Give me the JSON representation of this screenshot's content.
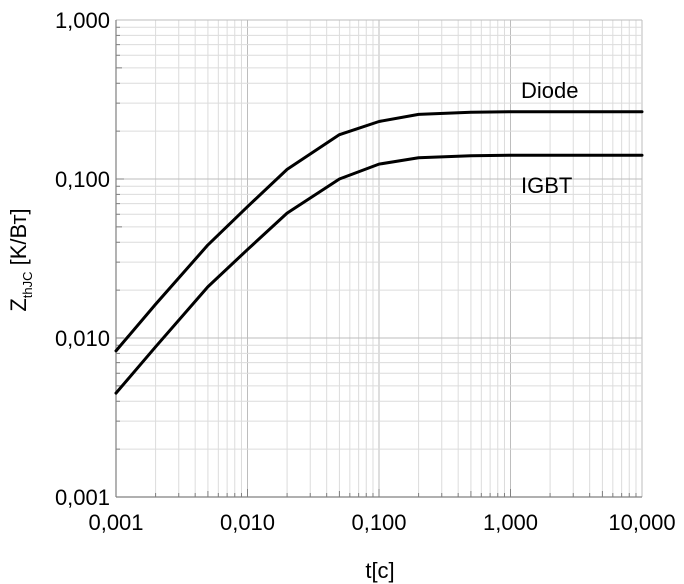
{
  "chart_data": {
    "type": "line",
    "xscale": "log",
    "yscale": "log",
    "xlim": [
      0.001,
      10
    ],
    "ylim": [
      0.001,
      1
    ],
    "grid": true,
    "x_ticks": [
      0.001,
      0.01,
      0.1,
      1,
      10
    ],
    "x_tick_labels": [
      "0,001",
      "0,010",
      "0,100",
      "1,000",
      "10,000"
    ],
    "y_ticks": [
      0.001,
      0.01,
      0.1,
      1
    ],
    "y_tick_labels": [
      "0,001",
      "0,010",
      "0,100",
      "1,000"
    ],
    "xlabel": "t[c]",
    "ylabel_main": "Z",
    "ylabel_sub": "thJC",
    "ylabel_unit": " [K/Вт]",
    "series": [
      {
        "name": "Diode",
        "x": [
          0.001,
          0.002,
          0.005,
          0.01,
          0.02,
          0.05,
          0.1,
          0.2,
          0.5,
          1,
          2,
          5,
          10
        ],
        "y": [
          0.0083,
          0.0163,
          0.0385,
          0.067,
          0.115,
          0.19,
          0.23,
          0.255,
          0.263,
          0.265,
          0.265,
          0.265,
          0.265
        ]
      },
      {
        "name": "IGBT",
        "x": [
          0.001,
          0.002,
          0.005,
          0.01,
          0.02,
          0.05,
          0.1,
          0.2,
          0.5,
          1,
          2,
          5,
          10
        ],
        "y": [
          0.0045,
          0.0088,
          0.021,
          0.036,
          0.061,
          0.1,
          0.124,
          0.136,
          0.14,
          0.141,
          0.141,
          0.141,
          0.141
        ]
      }
    ]
  }
}
